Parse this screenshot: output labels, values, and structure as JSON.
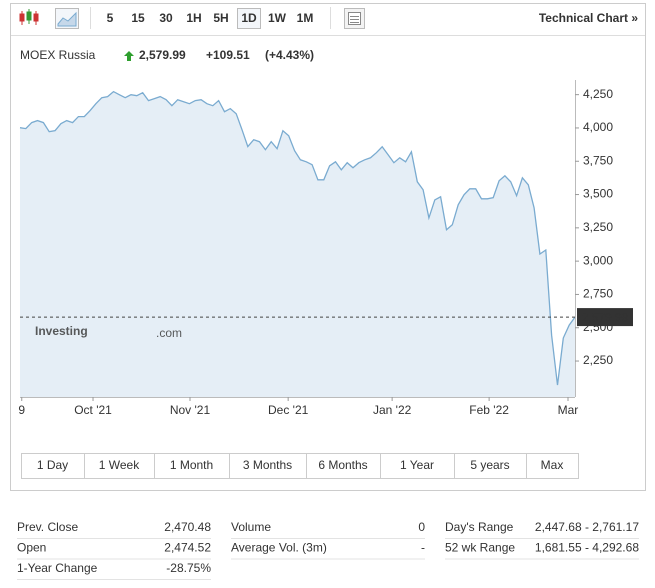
{
  "toolbar": {
    "intervals": [
      "5",
      "15",
      "30",
      "1H",
      "5H",
      "1D",
      "1W",
      "1M"
    ],
    "link": "Technical Chart »"
  },
  "chart_data": {
    "type": "line",
    "title": "MOEX Russia",
    "price": "2,579.99",
    "change": "+109.51",
    "change_pct": "(+4.43%)",
    "watermark_main": "Investing",
    "watermark_suffix": ".com",
    "color": "#7aabd0",
    "fill": "#e5eef6",
    "values": [
      4002,
      3995,
      4040,
      4055,
      4040,
      3972,
      3980,
      4032,
      4055,
      4040,
      4085,
      4085,
      4130,
      4182,
      4227,
      4235,
      4273,
      4250,
      4227,
      4250,
      4242,
      4265,
      4205,
      4220,
      4235,
      4212,
      4167,
      4212,
      4197,
      4182,
      4205,
      4212,
      4182,
      4167,
      4205,
      4122,
      4145,
      4107,
      3987,
      3860,
      3912,
      3897,
      3837,
      3897,
      3844,
      3979,
      3942,
      3829,
      3761,
      3746,
      3724,
      3611,
      3611,
      3716,
      3746,
      3686,
      3739,
      3701,
      3739,
      3761,
      3776,
      3814,
      3859,
      3799,
      3739,
      3776,
      3746,
      3821,
      3596,
      3536,
      3325,
      3460,
      3483,
      3235,
      3273,
      3423,
      3498,
      3543,
      3543,
      3468,
      3468,
      3476,
      3603,
      3641,
      3596,
      3491,
      3626,
      3573,
      3400,
      3054,
      3084,
      2445,
      2069,
      2423,
      2520,
      2579.99
    ],
    "xlim": [
      0,
      95
    ],
    "xticks": [
      {
        "value": 0.3,
        "label": "9"
      },
      {
        "value": 12.5,
        "label": "Oct '21"
      },
      {
        "value": 29.1,
        "label": "Nov '21"
      },
      {
        "value": 45.9,
        "label": "Dec '21"
      },
      {
        "value": 63.7,
        "label": "Jan '22"
      },
      {
        "value": 80.3,
        "label": "Feb '22"
      },
      {
        "value": 93.8,
        "label": "Mar"
      }
    ],
    "ylim": [
      1980,
      4360
    ],
    "yticks": [
      {
        "value": 2250,
        "label": "2,250"
      },
      {
        "value": 2500,
        "label": "2,500"
      },
      {
        "value": 2750,
        "label": "2,750"
      },
      {
        "value": 3000,
        "label": "3,000"
      },
      {
        "value": 3250,
        "label": "3,250"
      },
      {
        "value": 3500,
        "label": "3,500"
      },
      {
        "value": 3750,
        "label": "3,750"
      },
      {
        "value": 4000,
        "label": "4,000"
      },
      {
        "value": 4250,
        "label": "4,250"
      }
    ]
  },
  "ranges": [
    "1 Day",
    "1 Week",
    "1 Month",
    "3 Months",
    "6 Months",
    "1 Year",
    "5 years",
    "Max"
  ],
  "stats": [
    [
      [
        "Prev. Close",
        "2,470.48"
      ],
      [
        "Open",
        "2,474.52"
      ],
      [
        "1-Year Change",
        "-28.75%"
      ]
    ],
    [
      [
        "Volume",
        "0"
      ],
      [
        "Average Vol. (3m)",
        "-"
      ]
    ],
    [
      [
        "Day's Range",
        "2,447.68 - 2,761.17"
      ],
      [
        "52 wk Range",
        "1,681.55 - 4,292.68"
      ]
    ]
  ]
}
